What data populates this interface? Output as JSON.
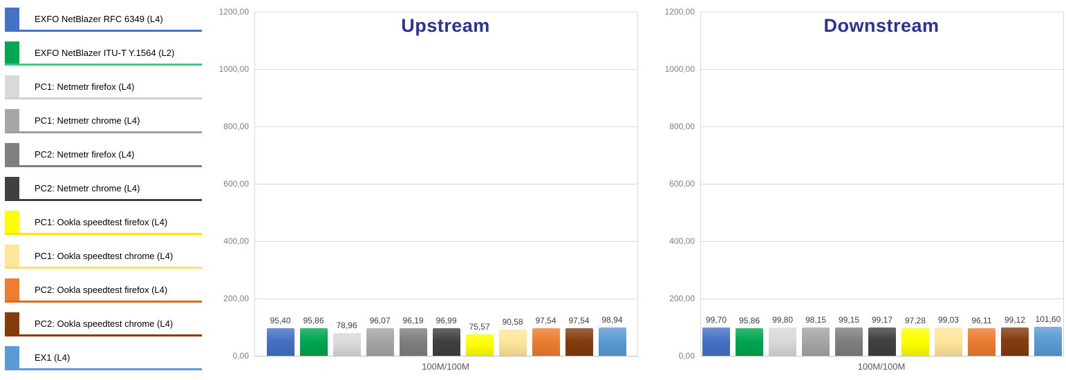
{
  "colors": {
    "title": "#2E3192",
    "grid": "#D9D9D9",
    "axis_line": "#BFBFBF",
    "tick_label": "#7F7F7F",
    "value_label": "#404040",
    "x_label": "#595959",
    "legend_text": "#000000",
    "background": "#FFFFFF"
  },
  "legend": {
    "items": [
      {
        "label": "EXFO NetBlazer RFC 6349 (L4)",
        "swatch": "#4472C4",
        "line": "#4472C4"
      },
      {
        "label": "EXFO NetBlazer ITU-T Y.1564 (L2)",
        "swatch": "#00A651",
        "line": "#3FC97C"
      },
      {
        "label": "PC1: Netmetr firefox (L4)",
        "swatch": "#D9D9D9",
        "line": "#CFCFCF"
      },
      {
        "label": "PC1: Netmetr chrome (L4)",
        "swatch": "#A6A6A6",
        "line": "#9E9E9E"
      },
      {
        "label": "PC2: Netmetr firefox (L4)",
        "swatch": "#7F7F7F",
        "line": "#7F7F7F"
      },
      {
        "label": "PC2: Netmetr chrome (L4)",
        "swatch": "#404040",
        "line": "#404040"
      },
      {
        "label": "PC1: Ookla speedtest firefox (L4)",
        "swatch": "#FFFF00",
        "line": "#FFE500"
      },
      {
        "label": "PC1: Ookla speedtest chrome (L4)",
        "swatch": "#FFE699",
        "line": "#FFDC7A"
      },
      {
        "label": "PC2: Ookla speedtest firefox (L4)",
        "swatch": "#ED7D31",
        "line": "#E06B17"
      },
      {
        "label": "PC2: Ookla speedtest chrome (L4)",
        "swatch": "#843C0C",
        "line": "#8B3A08"
      },
      {
        "label": "EX1 (L4)",
        "swatch": "#5B9BD5",
        "line": "#5B9BD5"
      }
    ]
  },
  "chart_data": [
    {
      "type": "bar",
      "title": "Upstream",
      "categories": [
        "100M/100M"
      ],
      "xlabel": "100M/100M",
      "ylim": [
        0,
        1200
      ],
      "y_ticks": [
        "1200,00",
        "1000,00",
        "800,00",
        "600,00",
        "400,00",
        "200,00",
        "0,00"
      ],
      "grid": true,
      "legend_position": "left-external",
      "series": [
        {
          "name": "EXFO NetBlazer RFC 6349 (L4)",
          "color": "#4472C4",
          "value": 95.4,
          "label": "95,40"
        },
        {
          "name": "EXFO NetBlazer ITU-T Y.1564 (L2)",
          "color": "#00A651",
          "value": 95.86,
          "label": "95,86"
        },
        {
          "name": "PC1: Netmetr firefox (L4)",
          "color": "#D9D9D9",
          "value": 78.96,
          "label": "78,96"
        },
        {
          "name": "PC1: Netmetr chrome (L4)",
          "color": "#A6A6A6",
          "value": 96.07,
          "label": "96,07"
        },
        {
          "name": "PC2: Netmetr firefox (L4)",
          "color": "#7F7F7F",
          "value": 96.19,
          "label": "96,19"
        },
        {
          "name": "PC2: Netmetr chrome (L4)",
          "color": "#404040",
          "value": 96.99,
          "label": "96,99"
        },
        {
          "name": "PC1: Ookla speedtest firefox (L4)",
          "color": "#FFFF00",
          "value": 75.57,
          "label": "75,57"
        },
        {
          "name": "PC1: Ookla speedtest chrome (L4)",
          "color": "#FFE699",
          "value": 90.58,
          "label": "90,58"
        },
        {
          "name": "PC2: Ookla speedtest firefox (L4)",
          "color": "#ED7D31",
          "value": 97.54,
          "label": "97,54"
        },
        {
          "name": "PC2: Ookla speedtest chrome (L4)",
          "color": "#843C0C",
          "value": 97.54,
          "label": "97,54"
        },
        {
          "name": "EX1 (L4)",
          "color": "#5B9BD5",
          "value": 98.94,
          "label": "98,94"
        }
      ]
    },
    {
      "type": "bar",
      "title": "Downstream",
      "categories": [
        "100M/100M"
      ],
      "xlabel": "100M/100M",
      "ylim": [
        0,
        1200
      ],
      "y_ticks": [
        "1200,00",
        "1000,00",
        "800,00",
        "600,00",
        "400,00",
        "200,00",
        "0,00"
      ],
      "grid": true,
      "legend_position": "left-external",
      "series": [
        {
          "name": "EXFO NetBlazer RFC 6349 (L4)",
          "color": "#4472C4",
          "value": 99.7,
          "label": "99,70"
        },
        {
          "name": "EXFO NetBlazer ITU-T Y.1564 (L2)",
          "color": "#00A651",
          "value": 95.86,
          "label": "95,86"
        },
        {
          "name": "PC1: Netmetr firefox (L4)",
          "color": "#D9D9D9",
          "value": 99.8,
          "label": "99,80"
        },
        {
          "name": "PC1: Netmetr chrome (L4)",
          "color": "#A6A6A6",
          "value": 98.15,
          "label": "98,15"
        },
        {
          "name": "PC2: Netmetr firefox (L4)",
          "color": "#7F7F7F",
          "value": 99.15,
          "label": "99,15"
        },
        {
          "name": "PC2: Netmetr chrome (L4)",
          "color": "#404040",
          "value": 99.17,
          "label": "99,17"
        },
        {
          "name": "PC1: Ookla speedtest firefox (L4)",
          "color": "#FFFF00",
          "value": 97.28,
          "label": "97,28"
        },
        {
          "name": "PC1: Ookla speedtest chrome (L4)",
          "color": "#FFE699",
          "value": 99.03,
          "label": "99,03"
        },
        {
          "name": "PC2: Ookla speedtest firefox (L4)",
          "color": "#ED7D31",
          "value": 96.11,
          "label": "96,11"
        },
        {
          "name": "PC2: Ookla speedtest chrome (L4)",
          "color": "#843C0C",
          "value": 99.12,
          "label": "99,12"
        },
        {
          "name": "EX1 (L4)",
          "color": "#5B9BD5",
          "value": 101.6,
          "label": "101,60"
        }
      ]
    }
  ]
}
